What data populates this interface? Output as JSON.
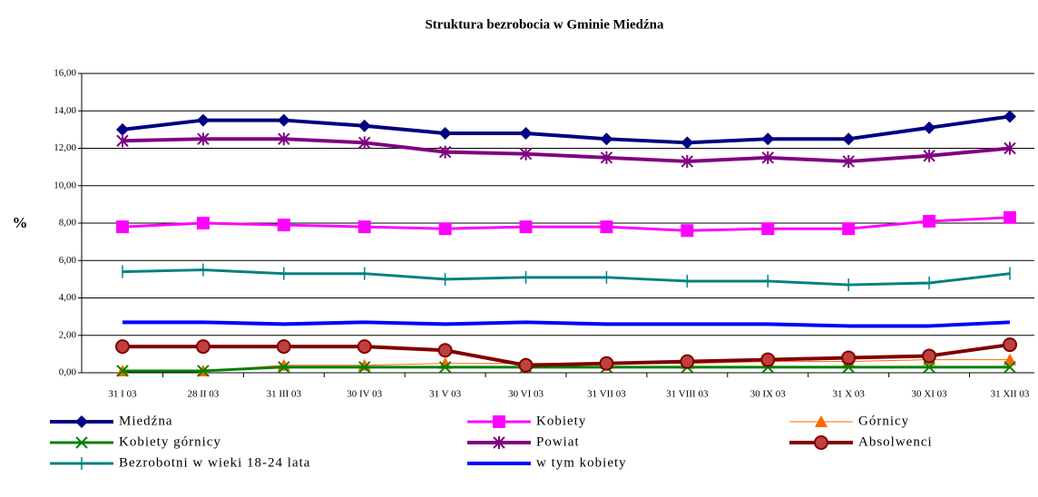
{
  "chart_data": {
    "type": "line",
    "title": "Struktura bezrobocia w Gminie Miedźna",
    "y_label": "%",
    "categories": [
      "31 I 03",
      "28 II 03",
      "31 III 03",
      "30 IV 03",
      "31 V 03",
      "30 VI 03",
      "31 VII 03",
      "31 VIII 03",
      "30 IX 03",
      "31 X 03",
      "30 XI 03",
      "31 XII 03"
    ],
    "ylim": [
      0,
      16
    ],
    "yticks": [
      {
        "value": 0,
        "label": "0,00"
      },
      {
        "value": 2,
        "label": "2,00"
      },
      {
        "value": 4,
        "label": "4,00"
      },
      {
        "value": 6,
        "label": "6,00"
      },
      {
        "value": 8,
        "label": "8,00"
      },
      {
        "value": 10,
        "label": "10,00"
      },
      {
        "value": 12,
        "label": "12,00"
      },
      {
        "value": 14,
        "label": "14,00"
      },
      {
        "value": 16,
        "label": "16,00"
      }
    ],
    "grid": true,
    "legend": "bottom",
    "series": [
      {
        "name": "Miedźna",
        "color": "#000080",
        "marker": "diamond",
        "width": 4,
        "values": [
          13.0,
          13.5,
          13.5,
          13.2,
          12.8,
          12.8,
          12.5,
          12.3,
          12.5,
          12.5,
          13.1,
          13.7
        ]
      },
      {
        "name": "Kobiety",
        "color": "#ff00ff",
        "marker": "square",
        "width": 3,
        "values": [
          7.8,
          8.0,
          7.9,
          7.8,
          7.7,
          7.8,
          7.8,
          7.6,
          7.7,
          7.7,
          8.1,
          8.3
        ]
      },
      {
        "name": "Górnicy",
        "color": "#ff6600",
        "marker": "triangle",
        "width": 1,
        "values": [
          0.1,
          0.1,
          0.4,
          0.4,
          0.5,
          0.5,
          0.5,
          0.5,
          0.6,
          0.6,
          0.7,
          0.7
        ]
      },
      {
        "name": "Kobiety górnicy",
        "color": "#008000",
        "marker": "x",
        "width": 3,
        "values": [
          0.1,
          0.1,
          0.3,
          0.3,
          0.3,
          0.3,
          0.3,
          0.3,
          0.3,
          0.3,
          0.3,
          0.3
        ]
      },
      {
        "name": "Powiat",
        "color": "#800080",
        "marker": "star",
        "width": 4,
        "values": [
          12.4,
          12.5,
          12.5,
          12.3,
          11.8,
          11.7,
          11.5,
          11.3,
          11.5,
          11.3,
          11.6,
          12.0
        ]
      },
      {
        "name": "Absolwenci",
        "color": "#800000",
        "marker": "circle",
        "width": 4,
        "values": [
          1.4,
          1.4,
          1.4,
          1.4,
          1.2,
          0.4,
          0.5,
          0.6,
          0.7,
          0.8,
          0.9,
          1.5
        ]
      },
      {
        "name": "Bezrobotni w wieki 18-24 lata",
        "color": "#008080",
        "marker": "plus",
        "width": 3,
        "values": [
          5.4,
          5.5,
          5.3,
          5.3,
          5.0,
          5.1,
          5.1,
          4.9,
          4.9,
          4.7,
          4.8,
          5.3
        ]
      },
      {
        "name": "w tym kobiety",
        "color": "#0000ff",
        "marker": "none",
        "width": 4,
        "values": [
          2.7,
          2.7,
          2.6,
          2.7,
          2.6,
          2.7,
          2.6,
          2.6,
          2.6,
          2.5,
          2.5,
          2.7
        ]
      }
    ]
  }
}
